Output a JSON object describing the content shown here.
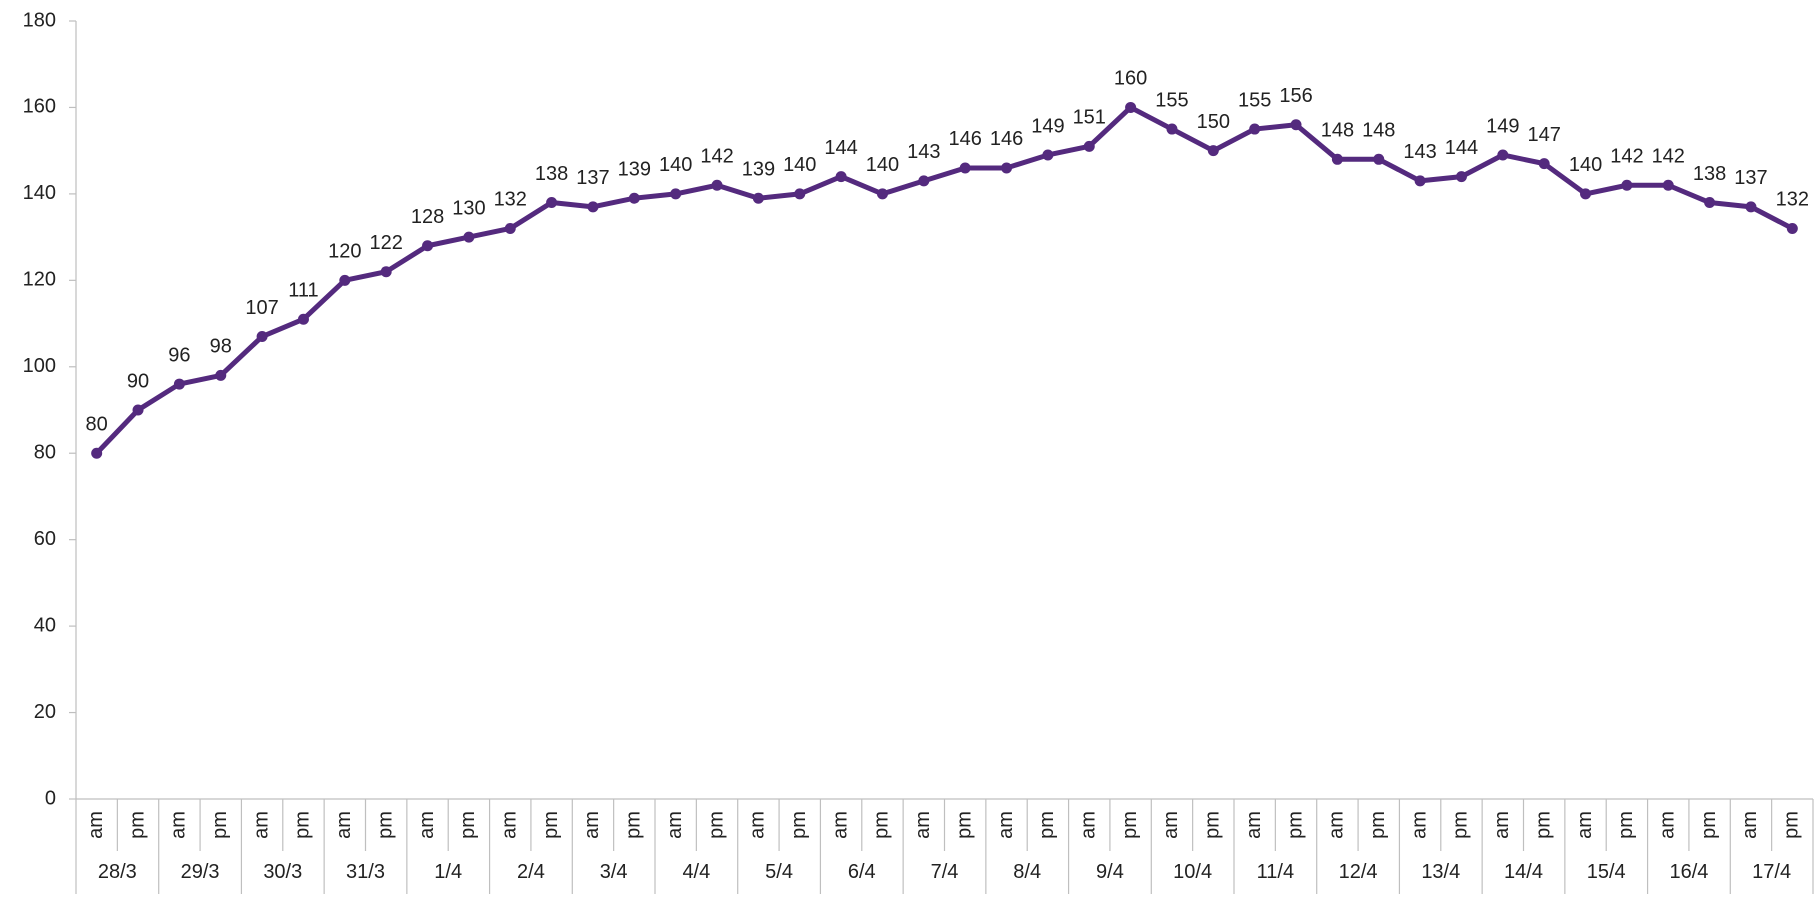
{
  "chart_data": {
    "type": "line",
    "categories": [
      "am",
      "pm",
      "am",
      "pm",
      "am",
      "pm",
      "am",
      "pm",
      "am",
      "pm",
      "am",
      "pm",
      "am",
      "pm",
      "am",
      "pm",
      "am",
      "pm",
      "am",
      "pm",
      "am",
      "pm",
      "am",
      "pm",
      "am",
      "pm",
      "am",
      "pm",
      "am",
      "pm",
      "am",
      "pm",
      "am",
      "pm",
      "am",
      "pm",
      "am",
      "pm",
      "am",
      "pm",
      "am",
      "pm"
    ],
    "groups": [
      "28/3",
      "29/3",
      "30/3",
      "31/3",
      "1/4",
      "2/4",
      "3/4",
      "4/4",
      "5/4",
      "6/4",
      "7/4",
      "8/4",
      "9/4",
      "10/4",
      "11/4",
      "12/4",
      "13/4",
      "14/4",
      "15/4",
      "16/4",
      "17/4"
    ],
    "series": [
      {
        "color": "#542a7e",
        "values": [
          80,
          90,
          96,
          98,
          107,
          111,
          120,
          122,
          128,
          130,
          132,
          138,
          137,
          139,
          140,
          142,
          139,
          140,
          144,
          140,
          143,
          146,
          146,
          149,
          151,
          160,
          155,
          150,
          155,
          156,
          148,
          148,
          143,
          144,
          149,
          147,
          140,
          142,
          142,
          138,
          137,
          132
        ]
      }
    ],
    "ylim": [
      0,
      180
    ],
    "yticks": [
      0,
      20,
      40,
      60,
      80,
      100,
      120,
      140,
      160,
      180
    ],
    "grid": false,
    "data_labels": true
  }
}
